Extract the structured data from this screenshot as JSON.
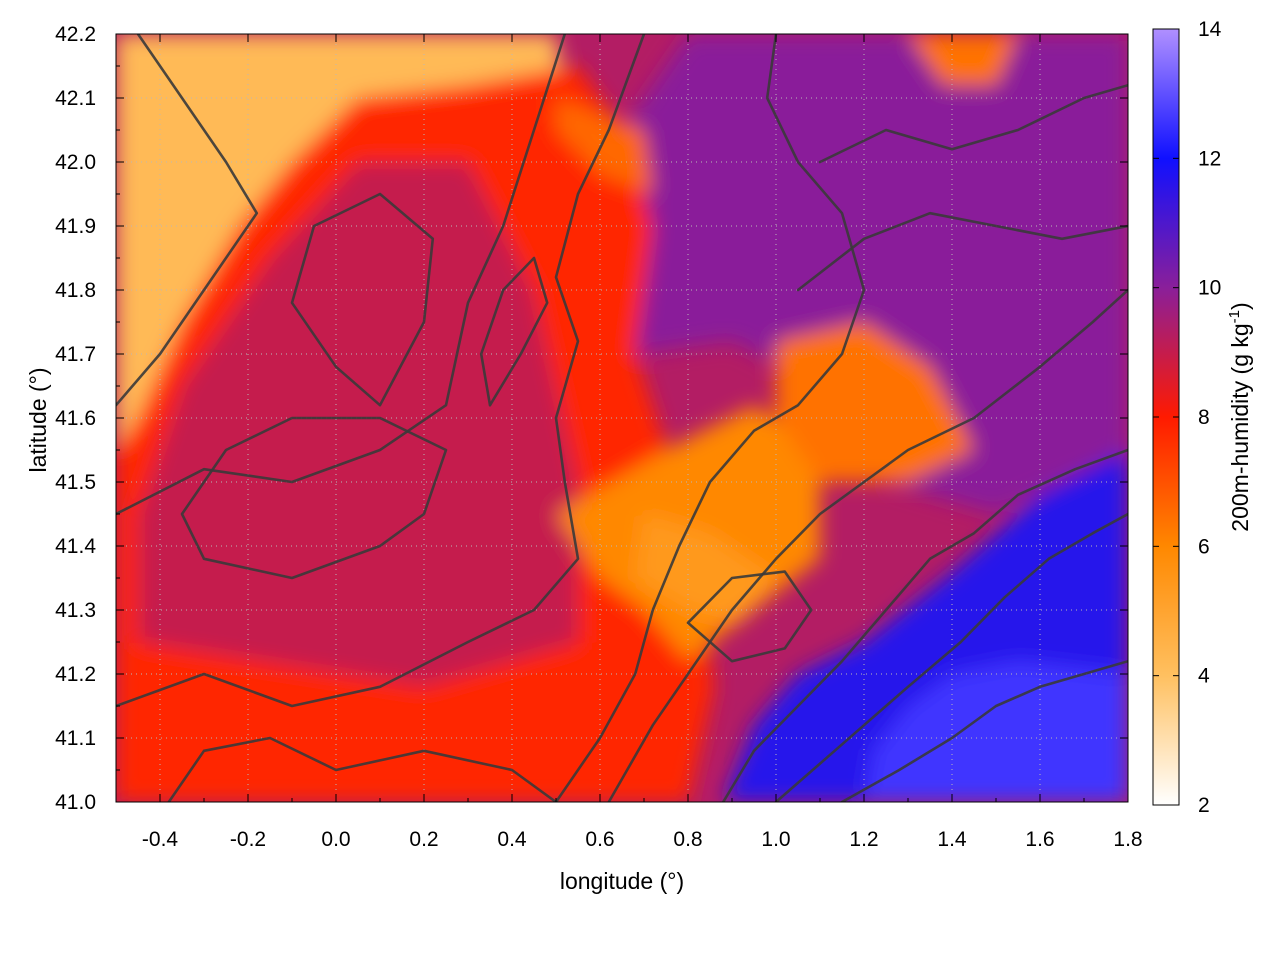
{
  "chart_data": {
    "type": "heatmap",
    "xlabel": "longitude (°)",
    "ylabel": "latitude (°)",
    "colorbar_label": "200m-humidity (g kg",
    "colorbar_label_sup": "-1",
    "colorbar_label_end": ")",
    "xlim": [
      -0.5,
      1.8
    ],
    "ylim": [
      41.0,
      42.2
    ],
    "clim": [
      2,
      14
    ],
    "x_ticks": [
      -0.4,
      -0.2,
      0.0,
      0.2,
      0.4,
      0.6,
      0.8,
      1.0,
      1.2,
      1.4,
      1.6,
      1.8
    ],
    "x_tick_labels": [
      "-0.4",
      "-0.2",
      "0.0",
      "0.2",
      "0.4",
      "0.6",
      "0.8",
      "1.0",
      "1.2",
      "1.4",
      "1.6",
      "1.8"
    ],
    "y_ticks": [
      41.0,
      41.1,
      41.2,
      41.3,
      41.4,
      41.5,
      41.6,
      41.7,
      41.8,
      41.9,
      42.0,
      42.1,
      42.2
    ],
    "y_tick_labels": [
      "41.0",
      "41.1",
      "41.2",
      "41.3",
      "41.4",
      "41.5",
      "41.6",
      "41.7",
      "41.8",
      "41.9",
      "42.0",
      "42.1",
      "42.2"
    ],
    "c_ticks": [
      2,
      4,
      6,
      8,
      10,
      12,
      14
    ],
    "c_tick_labels": [
      "2",
      "4",
      "6",
      "8",
      "10",
      "12",
      "14"
    ],
    "grid": true,
    "colormap": [
      {
        "value": 2,
        "color": "#ffffff"
      },
      {
        "value": 4,
        "color": "#ffc060"
      },
      {
        "value": 6,
        "color": "#ff8800"
      },
      {
        "value": 8,
        "color": "#ff1a00"
      },
      {
        "value": 10,
        "color": "#8a1f9a"
      },
      {
        "value": 12,
        "color": "#1010ff"
      },
      {
        "value": 14,
        "color": "#b090ff"
      }
    ],
    "regions": [
      {
        "name": "dry-northwest",
        "humidity": 4.2,
        "points": [
          [
            -0.5,
            42.2
          ],
          [
            0.5,
            42.2
          ],
          [
            0.52,
            42.1
          ],
          [
            0.3,
            42.1
          ],
          [
            0.05,
            42.1
          ],
          [
            -0.1,
            42.0
          ],
          [
            -0.22,
            41.9
          ],
          [
            -0.35,
            41.75
          ],
          [
            -0.45,
            41.6
          ],
          [
            -0.5,
            41.55
          ]
        ]
      },
      {
        "name": "dry-north",
        "humidity": 4.5,
        "points": [
          [
            0.9,
            42.2
          ],
          [
            1.02,
            42.2
          ],
          [
            0.98,
            42.08
          ],
          [
            0.92,
            42.02
          ],
          [
            0.86,
            42.06
          ]
        ]
      },
      {
        "name": "dry-southwest",
        "humidity": 4.0,
        "points": [
          [
            -0.5,
            41.0
          ],
          [
            -0.38,
            41.0
          ],
          [
            -0.42,
            41.1
          ],
          [
            -0.5,
            41.12
          ]
        ]
      },
      {
        "name": "moist-west",
        "humidity": 7.8,
        "points": [
          [
            -0.5,
            41.0
          ],
          [
            0.8,
            41.0
          ],
          [
            0.86,
            41.18
          ],
          [
            0.8,
            41.45
          ],
          [
            0.68,
            41.7
          ],
          [
            0.72,
            41.9
          ],
          [
            0.65,
            42.05
          ],
          [
            0.55,
            42.15
          ],
          [
            0.3,
            42.12
          ],
          [
            0.05,
            42.1
          ],
          [
            -0.1,
            42.0
          ],
          [
            -0.22,
            41.9
          ],
          [
            -0.35,
            41.75
          ],
          [
            -0.45,
            41.6
          ],
          [
            -0.5,
            41.55
          ]
        ]
      },
      {
        "name": "moist-core",
        "humidity": 9.0,
        "points": [
          [
            -0.45,
            41.25
          ],
          [
            0.2,
            41.18
          ],
          [
            0.55,
            41.25
          ],
          [
            0.55,
            41.5
          ],
          [
            0.45,
            41.8
          ],
          [
            0.3,
            42.0
          ],
          [
            0.05,
            42.0
          ],
          [
            -0.15,
            41.85
          ],
          [
            -0.35,
            41.65
          ],
          [
            -0.45,
            41.45
          ]
        ]
      },
      {
        "name": "moist-east",
        "humidity": 10.0,
        "points": [
          [
            0.68,
            41.7
          ],
          [
            0.72,
            41.9
          ],
          [
            0.65,
            42.05
          ],
          [
            0.8,
            42.2
          ],
          [
            1.8,
            42.2
          ],
          [
            1.8,
            41.55
          ],
          [
            1.5,
            41.45
          ],
          [
            1.25,
            41.5
          ],
          [
            1.1,
            41.65
          ],
          [
            0.9,
            41.72
          ]
        ]
      },
      {
        "name": "humid-southeast",
        "humidity": 11.6,
        "points": [
          [
            0.88,
            41.0
          ],
          [
            1.8,
            41.0
          ],
          [
            1.8,
            41.55
          ],
          [
            1.6,
            41.48
          ],
          [
            1.4,
            41.36
          ],
          [
            1.2,
            41.25
          ],
          [
            1.05,
            41.2
          ],
          [
            0.95,
            41.12
          ]
        ]
      },
      {
        "name": "sea-southeast",
        "humidity": 12.6,
        "points": [
          [
            1.2,
            41.0
          ],
          [
            1.8,
            41.0
          ],
          [
            1.8,
            41.2
          ],
          [
            1.55,
            41.22
          ],
          [
            1.4,
            41.2
          ],
          [
            1.3,
            41.15
          ],
          [
            1.22,
            41.08
          ]
        ]
      },
      {
        "name": "dry-tongue",
        "humidity": 6.0,
        "points": [
          [
            0.5,
            41.45
          ],
          [
            0.75,
            41.55
          ],
          [
            0.95,
            41.62
          ],
          [
            1.1,
            41.55
          ],
          [
            1.1,
            41.38
          ],
          [
            0.95,
            41.3
          ],
          [
            0.8,
            41.22
          ],
          [
            0.7,
            41.3
          ],
          [
            0.6,
            41.35
          ]
        ]
      },
      {
        "name": "dry-tongue-core",
        "humidity": 5.4,
        "points": [
          [
            0.7,
            41.45
          ],
          [
            0.85,
            41.42
          ],
          [
            1.0,
            41.35
          ],
          [
            0.92,
            41.28
          ],
          [
            0.8,
            41.3
          ],
          [
            0.68,
            41.35
          ]
        ]
      },
      {
        "name": "dry-east-patch",
        "humidity": 6.4,
        "points": [
          [
            1.0,
            41.72
          ],
          [
            1.2,
            41.75
          ],
          [
            1.35,
            41.68
          ],
          [
            1.45,
            41.55
          ],
          [
            1.3,
            41.5
          ],
          [
            1.1,
            41.5
          ],
          [
            1.0,
            41.6
          ]
        ]
      },
      {
        "name": "dry-north-patch",
        "humidity": 6.6,
        "points": [
          [
            0.5,
            42.1
          ],
          [
            0.7,
            42.05
          ],
          [
            0.72,
            41.95
          ],
          [
            0.6,
            41.98
          ],
          [
            0.5,
            42.05
          ]
        ]
      },
      {
        "name": "dry-northeast-patch",
        "humidity": 6.4,
        "points": [
          [
            1.3,
            42.2
          ],
          [
            1.55,
            42.2
          ],
          [
            1.5,
            42.12
          ],
          [
            1.38,
            42.12
          ]
        ]
      }
    ],
    "contours": [
      [
        [
          -0.5,
          41.45
        ],
        [
          -0.3,
          41.52
        ],
        [
          -0.1,
          41.5
        ],
        [
          0.1,
          41.55
        ],
        [
          0.25,
          41.62
        ],
        [
          0.3,
          41.78
        ],
        [
          0.38,
          41.9
        ],
        [
          0.45,
          42.05
        ],
        [
          0.52,
          42.2
        ]
      ],
      [
        [
          -0.45,
          42.2
        ],
        [
          -0.35,
          42.1
        ],
        [
          -0.25,
          42.0
        ],
        [
          -0.18,
          41.92
        ],
        [
          -0.3,
          41.8
        ],
        [
          -0.4,
          41.7
        ],
        [
          -0.5,
          41.62
        ]
      ],
      [
        [
          -0.3,
          41.38
        ],
        [
          -0.1,
          41.35
        ],
        [
          0.1,
          41.4
        ],
        [
          0.2,
          41.45
        ],
        [
          0.25,
          41.55
        ],
        [
          0.1,
          41.6
        ],
        [
          -0.1,
          41.6
        ],
        [
          -0.25,
          41.55
        ],
        [
          -0.35,
          41.45
        ],
        [
          -0.3,
          41.38
        ]
      ],
      [
        [
          0.1,
          41.62
        ],
        [
          0.2,
          41.75
        ],
        [
          0.22,
          41.88
        ],
        [
          0.1,
          41.95
        ],
        [
          -0.05,
          41.9
        ],
        [
          -0.1,
          41.78
        ],
        [
          0.0,
          41.68
        ],
        [
          0.1,
          41.62
        ]
      ],
      [
        [
          -0.5,
          41.15
        ],
        [
          -0.3,
          41.2
        ],
        [
          -0.1,
          41.15
        ],
        [
          0.1,
          41.18
        ],
        [
          0.3,
          41.25
        ],
        [
          0.45,
          41.3
        ],
        [
          0.55,
          41.38
        ],
        [
          0.52,
          41.5
        ],
        [
          0.5,
          41.6
        ],
        [
          0.55,
          41.72
        ],
        [
          0.5,
          41.82
        ],
        [
          0.55,
          41.95
        ],
        [
          0.62,
          42.05
        ],
        [
          0.7,
          42.2
        ]
      ],
      [
        [
          -0.38,
          41.0
        ],
        [
          -0.3,
          41.08
        ],
        [
          -0.15,
          41.1
        ],
        [
          0.0,
          41.05
        ],
        [
          0.2,
          41.08
        ],
        [
          0.4,
          41.05
        ],
        [
          0.5,
          41.0
        ]
      ],
      [
        [
          0.5,
          41.0
        ],
        [
          0.6,
          41.1
        ],
        [
          0.68,
          41.2
        ],
        [
          0.72,
          41.3
        ],
        [
          0.78,
          41.4
        ],
        [
          0.85,
          41.5
        ],
        [
          0.95,
          41.58
        ],
        [
          1.05,
          41.62
        ],
        [
          1.15,
          41.7
        ],
        [
          1.2,
          41.8
        ],
        [
          1.15,
          41.92
        ],
        [
          1.05,
          42.0
        ],
        [
          0.98,
          42.1
        ],
        [
          1.0,
          42.2
        ]
      ],
      [
        [
          0.62,
          41.0
        ],
        [
          0.72,
          41.12
        ],
        [
          0.8,
          41.2
        ],
        [
          0.9,
          41.3
        ],
        [
          1.0,
          41.38
        ],
        [
          1.1,
          41.45
        ],
        [
          1.2,
          41.5
        ],
        [
          1.3,
          41.55
        ],
        [
          1.45,
          41.6
        ],
        [
          1.6,
          41.68
        ],
        [
          1.72,
          41.75
        ],
        [
          1.8,
          41.8
        ]
      ],
      [
        [
          0.8,
          41.28
        ],
        [
          0.9,
          41.35
        ],
        [
          1.02,
          41.36
        ],
        [
          1.08,
          41.3
        ],
        [
          1.02,
          41.24
        ],
        [
          0.9,
          41.22
        ],
        [
          0.8,
          41.28
        ]
      ],
      [
        [
          0.88,
          41.0
        ],
        [
          0.95,
          41.08
        ],
        [
          1.05,
          41.15
        ],
        [
          1.15,
          41.22
        ],
        [
          1.25,
          41.3
        ],
        [
          1.35,
          41.38
        ],
        [
          1.45,
          41.42
        ],
        [
          1.55,
          41.48
        ],
        [
          1.68,
          41.52
        ],
        [
          1.8,
          41.55
        ]
      ],
      [
        [
          1.0,
          41.0
        ],
        [
          1.1,
          41.06
        ],
        [
          1.2,
          41.12
        ],
        [
          1.3,
          41.18
        ],
        [
          1.42,
          41.25
        ],
        [
          1.52,
          41.32
        ],
        [
          1.62,
          41.38
        ],
        [
          1.72,
          41.42
        ],
        [
          1.8,
          41.45
        ]
      ],
      [
        [
          1.15,
          41.0
        ],
        [
          1.28,
          41.05
        ],
        [
          1.4,
          41.1
        ],
        [
          1.5,
          41.15
        ],
        [
          1.6,
          41.18
        ],
        [
          1.7,
          41.2
        ],
        [
          1.8,
          41.22
        ]
      ],
      [
        [
          1.05,
          41.8
        ],
        [
          1.2,
          41.88
        ],
        [
          1.35,
          41.92
        ],
        [
          1.5,
          41.9
        ],
        [
          1.65,
          41.88
        ],
        [
          1.8,
          41.9
        ]
      ],
      [
        [
          1.1,
          42.0
        ],
        [
          1.25,
          42.05
        ],
        [
          1.4,
          42.02
        ],
        [
          1.55,
          42.05
        ],
        [
          1.7,
          42.1
        ],
        [
          1.8,
          42.12
        ]
      ],
      [
        [
          0.35,
          41.62
        ],
        [
          0.42,
          41.7
        ],
        [
          0.48,
          41.78
        ],
        [
          0.45,
          41.85
        ],
        [
          0.38,
          41.8
        ],
        [
          0.33,
          41.7
        ],
        [
          0.35,
          41.62
        ]
      ]
    ]
  }
}
